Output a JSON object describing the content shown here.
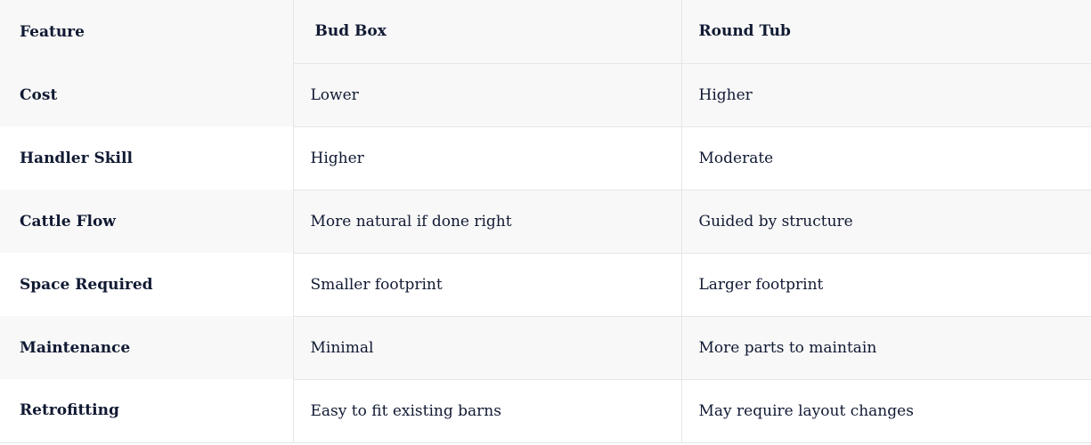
{
  "table": {
    "headers": [
      "Feature",
      "Bud Box",
      "Round Tub"
    ],
    "rows": [
      [
        "Cost",
        "Lower",
        "Higher"
      ],
      [
        "Handler Skill",
        "Higher",
        "Moderate"
      ],
      [
        "Cattle Flow",
        "More natural if done right",
        "Guided by structure"
      ],
      [
        "Space Required",
        "Smaller footprint",
        "Larger footprint"
      ],
      [
        "Maintenance",
        "Minimal",
        "More parts to maintain"
      ],
      [
        "Retrofitting",
        "Easy to fit existing barns",
        "May require layout changes"
      ]
    ]
  }
}
